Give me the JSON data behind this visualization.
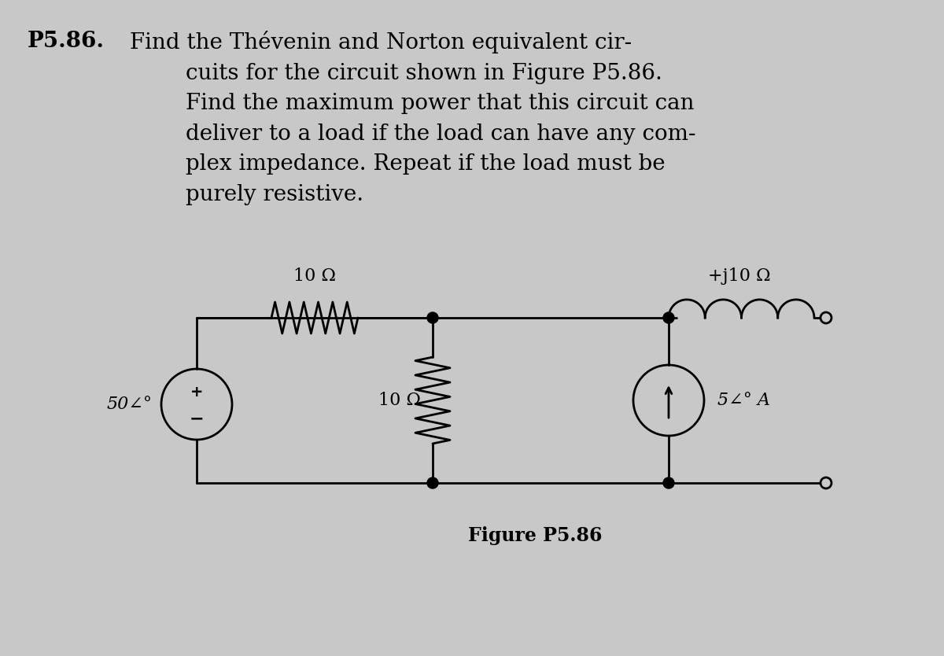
{
  "title_bold": "P5.86.",
  "title_text": " Find the Thévenin and Norton equivalent cir-\n        cuits for the circuit shown in Figure P5.86.\n        Find the maximum power that this circuit can\n        deliver to a load if the load can have any com-\n        plex impedance. Repeat if the load must be\n        purely resistive.",
  "figure_label": "Figure P5.86",
  "bg_color": "#c8c8c8",
  "text_color": "#000000",
  "label_10ohm_top": "10 Ω",
  "label_j10ohm": "+j10 Ω",
  "label_10ohm_mid": "10 Ω",
  "label_vsource": "50∠°",
  "label_isource": "5∠° A",
  "line_color": "#000000",
  "line_width": 2.0,
  "font_size_main": 20,
  "font_size_labels": 16,
  "font_size_figure": 17
}
